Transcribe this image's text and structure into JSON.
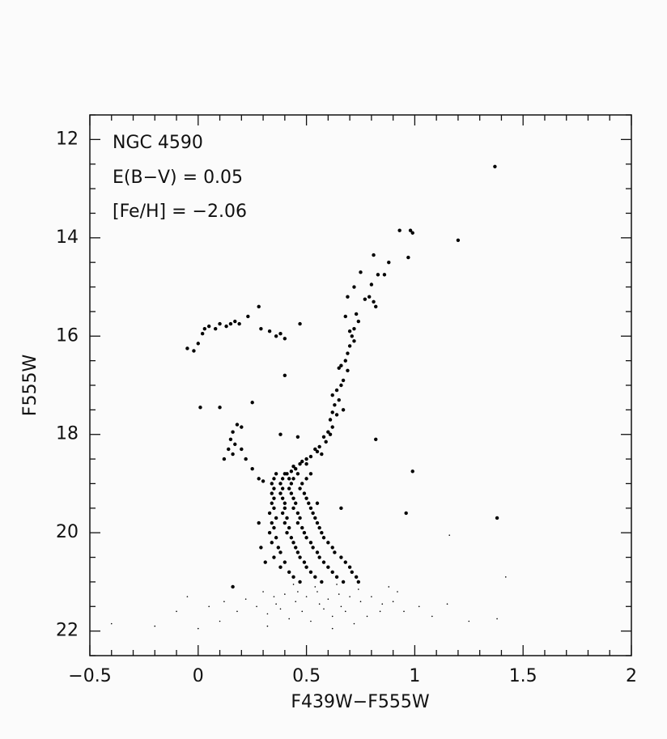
{
  "chart_data": {
    "type": "scatter",
    "xlabel": "F439W−F555W",
    "ylabel": "F555W",
    "annotations": [
      "NGC 4590",
      "E(B−V) = 0.05",
      "[Fe/H] = −2.06"
    ],
    "xlim": [
      -0.5,
      2
    ],
    "ylim": [
      22.5,
      11.5
    ],
    "xticks": [
      {
        "value": -0.5,
        "label": "−0.5"
      },
      0,
      0.5,
      1,
      1.5,
      2
    ],
    "yticks": [
      12,
      14,
      16,
      18,
      20,
      22
    ],
    "xticks_minor": [
      -0.4,
      -0.3,
      -0.2,
      -0.1,
      0.1,
      0.2,
      0.3,
      0.4,
      0.6,
      0.7,
      0.8,
      0.9,
      1.1,
      1.2,
      1.3,
      1.4,
      1.6,
      1.7,
      1.8,
      1.9
    ],
    "yticks_minor": [
      11.5,
      12.5,
      13,
      13.5,
      14.5,
      15,
      15.5,
      16.5,
      17,
      17.5,
      18.5,
      19,
      19.5,
      20.5,
      21,
      21.5,
      22.5
    ],
    "series": [
      {
        "color": "#000000",
        "marker_size": 2.2,
        "x": [
          1.37,
          0.93,
          0.98,
          0.99,
          1.2,
          0.81,
          0.97,
          0.88,
          0.75,
          0.83,
          0.86,
          0.72,
          0.8,
          0.79,
          0.77,
          0.81,
          0.82,
          0.69,
          0.73,
          0.74,
          0.72,
          0.71,
          0.7,
          0.72,
          0.69,
          0.68,
          0.66,
          0.69,
          0.67,
          0.66,
          0.64,
          0.65,
          0.63,
          0.62,
          0.64,
          0.61,
          0.62,
          0.6,
          0.58,
          0.59,
          0.56,
          0.55,
          0.52,
          0.5,
          0.47,
          0.45,
          0.43,
          0.4,
          0.42,
          0.44,
          0.57,
          0.61,
          0.68,
          0.7,
          0.65,
          0.62,
          0.67,
          0.54,
          0.48,
          0.5,
          -0.05,
          -0.02,
          0.0,
          0.02,
          0.03,
          0.05,
          0.08,
          0.1,
          0.13,
          0.15,
          0.17,
          0.19,
          0.23,
          0.28,
          0.29,
          0.33,
          0.36,
          0.38,
          0.4,
          0.47,
          0.4,
          0.01,
          0.1,
          0.25,
          0.18,
          0.2,
          0.16,
          0.15,
          0.14,
          0.16,
          0.12,
          0.2,
          0.22,
          0.25,
          0.28,
          0.3,
          0.17,
          0.38,
          0.46,
          0.82,
          0.99,
          0.96,
          1.38,
          0.66,
          0.55,
          0.36,
          0.41,
          0.46,
          0.52,
          0.35,
          0.39,
          0.44,
          0.5,
          0.34,
          0.38,
          0.43,
          0.48,
          0.35,
          0.39,
          0.42,
          0.47,
          0.34,
          0.38,
          0.43,
          0.49,
          0.35,
          0.39,
          0.44,
          0.5,
          0.34,
          0.4,
          0.45,
          0.51,
          0.35,
          0.4,
          0.44,
          0.52,
          0.33,
          0.39,
          0.46,
          0.53,
          0.36,
          0.41,
          0.47,
          0.54,
          0.34,
          0.4,
          0.46,
          0.55,
          0.35,
          0.42,
          0.48,
          0.56,
          0.33,
          0.41,
          0.49,
          0.57,
          0.36,
          0.43,
          0.5,
          0.58,
          0.34,
          0.44,
          0.52,
          0.6,
          0.37,
          0.45,
          0.53,
          0.62,
          0.38,
          0.46,
          0.55,
          0.63,
          0.35,
          0.47,
          0.56,
          0.66,
          0.4,
          0.49,
          0.58,
          0.68,
          0.38,
          0.5,
          0.6,
          0.7,
          0.42,
          0.52,
          0.62,
          0.71,
          0.44,
          0.54,
          0.64,
          0.73,
          0.47,
          0.57,
          0.67,
          0.74,
          0.16,
          0.29,
          0.31,
          0.28
        ],
        "values": [
          12.55,
          13.85,
          13.85,
          13.9,
          14.05,
          14.35,
          14.4,
          14.5,
          14.7,
          14.75,
          14.75,
          15.0,
          14.95,
          15.2,
          15.25,
          15.3,
          15.4,
          15.2,
          15.55,
          15.7,
          15.85,
          16.0,
          16.2,
          16.1,
          16.35,
          16.5,
          16.6,
          16.7,
          16.9,
          17.0,
          17.1,
          17.3,
          17.4,
          17.55,
          17.6,
          17.7,
          17.85,
          17.95,
          18.05,
          18.15,
          18.25,
          18.35,
          18.45,
          18.5,
          18.6,
          18.7,
          18.75,
          18.8,
          18.9,
          18.65,
          18.4,
          18.0,
          15.6,
          15.9,
          16.65,
          17.2,
          17.5,
          18.3,
          18.55,
          18.6,
          16.25,
          16.3,
          16.15,
          15.95,
          15.85,
          15.8,
          15.85,
          15.75,
          15.8,
          15.75,
          15.7,
          15.75,
          15.6,
          15.4,
          15.85,
          15.9,
          16.0,
          15.95,
          16.05,
          15.75,
          16.8,
          17.45,
          17.45,
          17.35,
          17.8,
          17.85,
          17.95,
          18.1,
          18.3,
          18.4,
          18.5,
          18.3,
          18.5,
          18.7,
          18.9,
          18.95,
          18.2,
          18.0,
          18.05,
          18.1,
          18.75,
          19.6,
          19.7,
          19.5,
          19.4,
          18.8,
          18.8,
          18.8,
          18.8,
          18.9,
          18.9,
          18.9,
          18.9,
          19.0,
          19.0,
          19.0,
          19.0,
          19.1,
          19.1,
          19.1,
          19.1,
          19.2,
          19.2,
          19.2,
          19.2,
          19.3,
          19.3,
          19.3,
          19.3,
          19.4,
          19.4,
          19.4,
          19.4,
          19.5,
          19.5,
          19.5,
          19.5,
          19.6,
          19.6,
          19.6,
          19.6,
          19.7,
          19.7,
          19.7,
          19.7,
          19.8,
          19.8,
          19.8,
          19.8,
          19.9,
          19.9,
          19.9,
          19.9,
          20.0,
          20.0,
          20.0,
          20.0,
          20.1,
          20.1,
          20.1,
          20.1,
          20.2,
          20.2,
          20.2,
          20.2,
          20.3,
          20.3,
          20.3,
          20.3,
          20.4,
          20.4,
          20.4,
          20.4,
          20.5,
          20.5,
          20.5,
          20.5,
          20.6,
          20.6,
          20.6,
          20.6,
          20.7,
          20.7,
          20.7,
          20.7,
          20.8,
          20.8,
          20.8,
          20.8,
          20.9,
          20.9,
          20.9,
          20.9,
          21.0,
          21.0,
          21.0,
          21.0,
          21.1,
          20.3,
          20.6,
          19.8
        ]
      },
      {
        "color": "#000000",
        "marker_size": 0.8,
        "x": [
          0.3,
          0.35,
          0.4,
          0.45,
          0.5,
          0.55,
          0.6,
          0.65,
          0.7,
          0.75,
          0.8,
          0.85,
          0.9,
          0.38,
          0.48,
          0.58,
          0.68,
          0.78,
          0.42,
          0.52,
          0.62,
          0.72,
          0.32,
          0.27,
          0.22,
          0.18,
          0.12,
          0.05,
          -0.05,
          -0.1,
          -0.2,
          -0.4,
          0.0,
          0.1,
          0.95,
          1.02,
          1.08,
          1.15,
          1.25,
          1.38,
          1.42,
          1.16,
          0.88,
          0.92,
          0.44,
          0.54,
          0.64,
          0.74,
          0.36,
          0.56,
          0.66,
          0.46,
          0.84,
          0.62,
          0.32
        ],
        "values": [
          21.2,
          21.3,
          21.25,
          21.4,
          21.3,
          21.2,
          21.35,
          21.25,
          21.3,
          21.4,
          21.3,
          21.45,
          21.4,
          21.55,
          21.6,
          21.55,
          21.6,
          21.7,
          21.75,
          21.8,
          21.7,
          21.85,
          21.65,
          21.5,
          21.35,
          21.6,
          21.4,
          21.5,
          21.3,
          21.6,
          21.9,
          21.85,
          21.95,
          21.8,
          21.6,
          21.5,
          21.7,
          21.45,
          21.8,
          21.75,
          20.9,
          20.05,
          21.1,
          21.2,
          21.05,
          21.1,
          21.05,
          21.15,
          21.45,
          21.45,
          21.5,
          21.2,
          21.6,
          21.95,
          21.9
        ]
      }
    ]
  }
}
